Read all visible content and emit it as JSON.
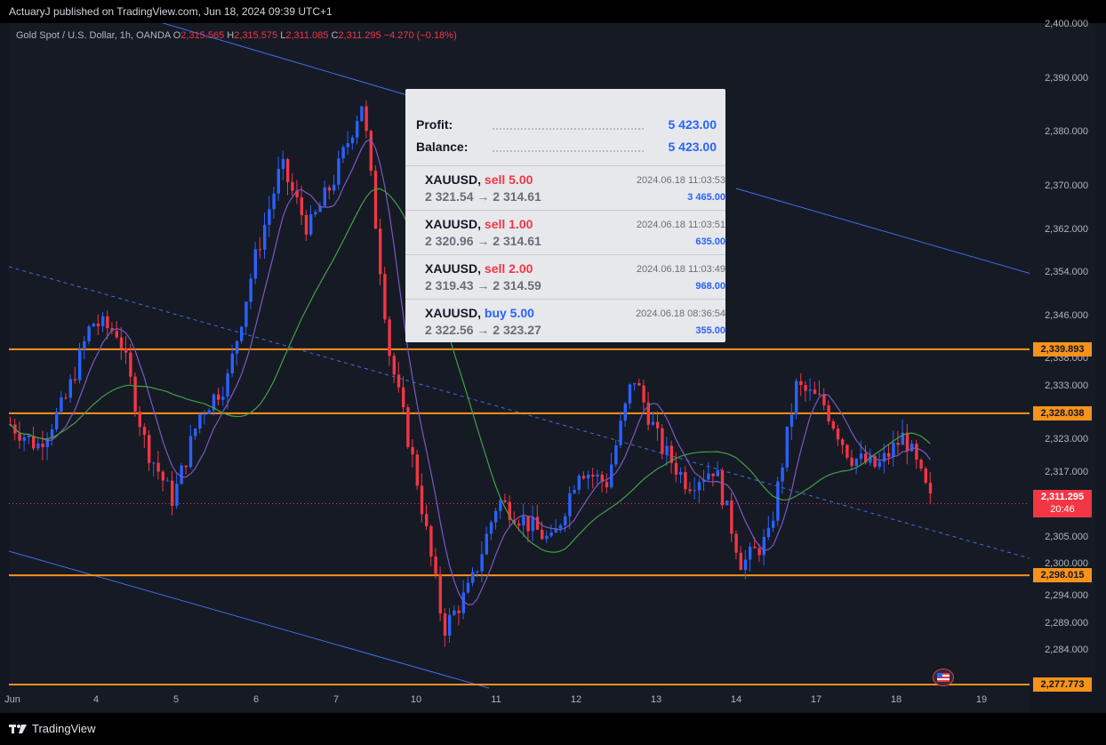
{
  "header": {
    "publisher": "ActuaryJ published on TradingView.com, Jun 18, 2024 09:39 UTC+1"
  },
  "symbol": {
    "name": "Gold Spot / U.S. Dollar, 1h, OANDA",
    "o_key": "O",
    "o": "2,315.565",
    "h_key": "H",
    "h": "2,315.575",
    "l_key": "L",
    "l": "2,311.085",
    "c_key": "C",
    "c": "2,311.295",
    "change": "−4.270 (−0.18%)"
  },
  "panel": {
    "profit_label": "Profit:",
    "profit_value": "5 423.00",
    "balance_label": "Balance:",
    "balance_value": "5 423.00",
    "trades": [
      {
        "symbol": "XAUUSD,",
        "side": "sell 5.00",
        "dir": "sell",
        "prices": "2 321.54 → 2 314.61",
        "time": "2024.06.18 11:03:53",
        "pnl": "3 465.00"
      },
      {
        "symbol": "XAUUSD,",
        "side": "sell 1.00",
        "dir": "sell",
        "prices": "2 320.96 → 2 314.61",
        "time": "2024.06.18 11:03:51",
        "pnl": "635.00"
      },
      {
        "symbol": "XAUUSD,",
        "side": "sell 2.00",
        "dir": "sell",
        "prices": "2 319.43 → 2 314.59",
        "time": "2024.06.18 11:03:49",
        "pnl": "968.00"
      },
      {
        "symbol": "XAUUSD,",
        "side": "buy 5.00",
        "dir": "buy",
        "prices": "2 322.56 → 2 323.27",
        "time": "2024.06.18 08:36:54",
        "pnl": "355.00"
      }
    ]
  },
  "y_axis": {
    "ticks": [
      "2,400.000",
      "2,390.000",
      "2,380.000",
      "2,370.000",
      "2,362.000",
      "2,354.000",
      "2,346.000",
      "2,338.000",
      "2,333.000",
      "2,323.000",
      "2,317.000",
      "2,305.000",
      "2,300.000",
      "2,294.000",
      "2,289.000",
      "2,284.000",
      "2,278.000"
    ],
    "levels": [
      "2,339.893",
      "2,328.038",
      "2,298.015",
      "2,277.773"
    ],
    "current_price": "2,311.295",
    "countdown": "20:46"
  },
  "x_axis": {
    "labels": [
      "Jun",
      "4",
      "5",
      "6",
      "7",
      "10",
      "11",
      "12",
      "13",
      "14",
      "17",
      "18",
      "19"
    ]
  },
  "footer": {
    "brand": "TradingView"
  },
  "colors": {
    "bull": "#2962ff",
    "bear": "#f23645",
    "level": "#f7921a",
    "ma_fast": "#7e57c2",
    "ma_slow": "#43a047",
    "channel": "#3d6fe6",
    "panel_bg": "#e7e8ec",
    "background": "#161a25"
  },
  "icons": {
    "brand_logo": "tradingview-logo-icon",
    "flag": "us-flag-icon"
  },
  "chart_data": {
    "type": "candlestick",
    "title": "Gold Spot / U.S. Dollar, 1h, OANDA",
    "y_range": [
      2274,
      2403
    ],
    "x_sessions": [
      "Jun 3",
      "Jun 4",
      "Jun 5",
      "Jun 6",
      "Jun 7",
      "Jun 10",
      "Jun 11",
      "Jun 12",
      "Jun 13",
      "Jun 14",
      "Jun 17",
      "Jun 18"
    ],
    "horizontal_levels": [
      2339.893,
      2328.038,
      2298.015,
      2277.773
    ],
    "last_price": 2311.295,
    "close_path": [
      {
        "session": "Jun 3 start",
        "close": 2326
      },
      {
        "session": "Jun 3 mid",
        "close": 2322
      },
      {
        "session": "Jun 3 late",
        "close": 2330
      },
      {
        "session": "Jun 4 early",
        "close": 2345
      },
      {
        "session": "Jun 4 mid",
        "close": 2343
      },
      {
        "session": "Jun 4 late",
        "close": 2322
      },
      {
        "session": "Jun 5 early",
        "close": 2312
      },
      {
        "session": "Jun 5 mid",
        "close": 2328
      },
      {
        "session": "Jun 5 late",
        "close": 2334
      },
      {
        "session": "Jun 6 early",
        "close": 2356
      },
      {
        "session": "Jun 6 mid",
        "close": 2374
      },
      {
        "session": "Jun 6 late",
        "close": 2362
      },
      {
        "session": "Jun 7 early",
        "close": 2372
      },
      {
        "session": "Jun 7 high",
        "close": 2386
      },
      {
        "session": "Jun 7 late",
        "close": 2339
      },
      {
        "session": "Jun 10 early",
        "close": 2316
      },
      {
        "session": "Jun 10 low",
        "close": 2288
      },
      {
        "session": "Jun 10 late",
        "close": 2296
      },
      {
        "session": "Jun 11 early",
        "close": 2312
      },
      {
        "session": "Jun 11 mid",
        "close": 2308
      },
      {
        "session": "Jun 11 late",
        "close": 2304
      },
      {
        "session": "Jun 12 early",
        "close": 2318
      },
      {
        "session": "Jun 12 mid",
        "close": 2315
      },
      {
        "session": "Jun 12 spike",
        "close": 2335
      },
      {
        "session": "Jun 13 early",
        "close": 2322
      },
      {
        "session": "Jun 13 mid",
        "close": 2315
      },
      {
        "session": "Jun 13 late",
        "close": 2318
      },
      {
        "session": "Jun 14 early",
        "close": 2300
      },
      {
        "session": "Jun 14 mid",
        "close": 2305
      },
      {
        "session": "Jun 14 late",
        "close": 2333
      },
      {
        "session": "Jun 17 early",
        "close": 2330
      },
      {
        "session": "Jun 17 mid",
        "close": 2320
      },
      {
        "session": "Jun 17 late",
        "close": 2318
      },
      {
        "session": "Jun 18 early",
        "close": 2324
      },
      {
        "session": "Jun 18 last",
        "close": 2311.295
      }
    ],
    "grid": false,
    "legend": "none"
  }
}
